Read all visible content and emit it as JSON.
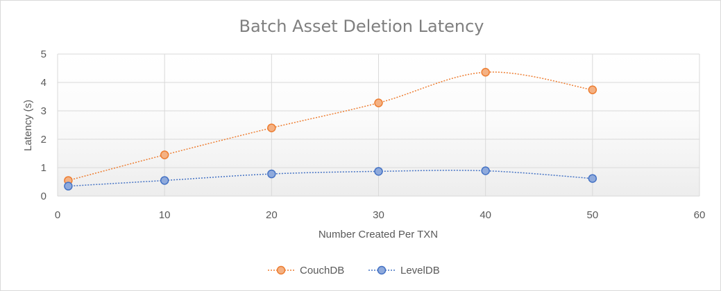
{
  "chart_data": {
    "type": "scatter",
    "title": "Batch Asset Deletion Latency",
    "xlabel": "Number Created Per TXN",
    "ylabel": "Latency (s)",
    "xlim": [
      0,
      60
    ],
    "ylim": [
      0,
      5
    ],
    "x_ticks": [
      "0",
      "10",
      "20",
      "30",
      "40",
      "50",
      "60"
    ],
    "y_ticks": [
      "0",
      "1",
      "2",
      "3",
      "4",
      "5"
    ],
    "grid": true,
    "legend_position": "bottom",
    "series": [
      {
        "name": "CouchDB",
        "color": "#ed7d31",
        "fill": "#f4b183",
        "x": [
          1,
          10,
          20,
          30,
          40,
          50
        ],
        "y": [
          0.55,
          1.45,
          2.4,
          3.28,
          4.36,
          3.74
        ]
      },
      {
        "name": "LevelDB",
        "color": "#4472c4",
        "fill": "#8faadc",
        "x": [
          1,
          10,
          20,
          30,
          40,
          50
        ],
        "y": [
          0.35,
          0.55,
          0.78,
          0.87,
          0.89,
          0.62
        ]
      }
    ]
  }
}
